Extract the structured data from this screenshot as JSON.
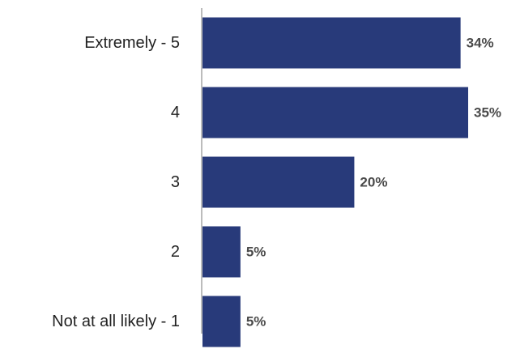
{
  "chart_data": {
    "type": "bar",
    "orientation": "horizontal",
    "categories": [
      "Extremely - 5",
      "4",
      "3",
      "2",
      "Not at all likely - 1"
    ],
    "values": [
      34,
      35,
      20,
      5,
      5
    ],
    "value_labels": [
      "34%",
      "35%",
      "20%",
      "5%",
      "5%"
    ],
    "unit": "%",
    "xlim": [
      0,
      35
    ],
    "grid": false,
    "legend": "none",
    "colors": {
      "bar": "#283a7a",
      "axis": "#a6a6a6",
      "category_text": "#222222",
      "value_text": "#4a4a4a"
    }
  }
}
